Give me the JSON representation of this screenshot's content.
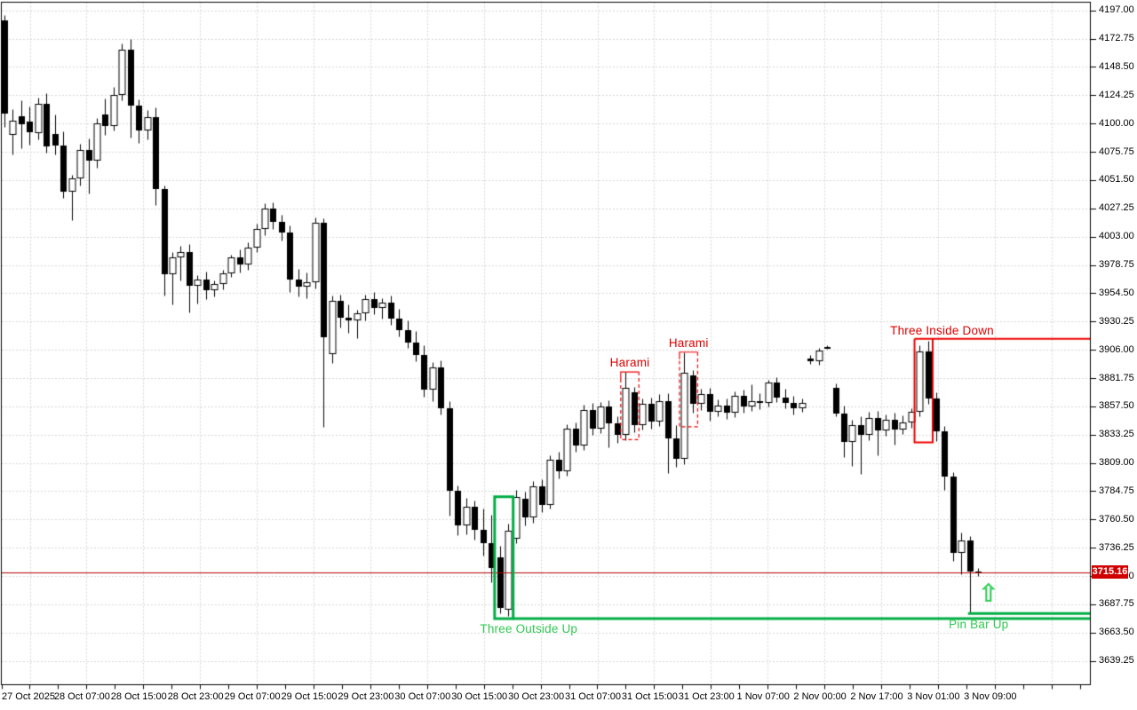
{
  "chart_data": {
    "type": "candlestick",
    "title": "",
    "grid": true,
    "ylim": [
      3639.25,
      4197.0
    ],
    "y_axis": {
      "price_step": 24.25,
      "tick_labels": [
        "4197.00",
        "4172.75",
        "4148.50",
        "4124.25",
        "4100.00",
        "4075.75",
        "4051.50",
        "4027.25",
        "4003.00",
        "3978.75",
        "3954.50",
        "3930.25",
        "3906.00",
        "3881.75",
        "3857.50",
        "3833.25",
        "3809.00",
        "3784.75",
        "3760.50",
        "3736.25",
        "3712.00",
        "3687.75",
        "3663.50",
        "3639.25"
      ],
      "price_tag": "3715.16"
    },
    "x_axis": {
      "tick_labels": [
        "27 Oct 2025",
        "28 Oct 07:00",
        "28 Oct 15:00",
        "28 Oct 23:00",
        "29 Oct 07:00",
        "29 Oct 15:00",
        "29 Oct 23:00",
        "30 Oct 07:00",
        "30 Oct 15:00",
        "30 Oct 23:00",
        "31 Oct 07:00",
        "31 Oct 15:00",
        "31 Oct 23:00",
        "1 Nov 07:00",
        "2 Nov 00:00",
        "2 Nov 17:00",
        "3 Nov 01:00",
        "3 Nov 09:00"
      ]
    },
    "horizontal_line": {
      "price": 3715.16
    },
    "candles_ohlc": [
      [
        4188.5,
        4192.75,
        4097.0,
        4108.5
      ],
      [
        4090.5,
        4112.5,
        4073.5,
        4102.75
      ],
      [
        4106.5,
        4120.0,
        4079.0,
        4099.25
      ],
      [
        4102.0,
        4114.5,
        4081.5,
        4092.75
      ],
      [
        4091.5,
        4122.0,
        4086.75,
        4117.25
      ],
      [
        4117.25,
        4126.0,
        4074.75,
        4080.0
      ],
      [
        4091.0,
        4107.75,
        4073.5,
        4081.25
      ],
      [
        4081.25,
        4093.0,
        4036.0,
        4041.5
      ],
      [
        4041.5,
        4056.0,
        4017.0,
        4052.75
      ],
      [
        4052.75,
        4083.0,
        4046.5,
        4077.5
      ],
      [
        4077.5,
        4087.0,
        4040.0,
        4068.0
      ],
      [
        4068.0,
        4105.0,
        4062.0,
        4100.25
      ],
      [
        4108.0,
        4121.5,
        4090.0,
        4098.0
      ],
      [
        4098.0,
        4131.0,
        4094.0,
        4124.5
      ],
      [
        4124.5,
        4168.25,
        4120.0,
        4163.0
      ],
      [
        4163.0,
        4172.75,
        4087.75,
        4115.25
      ],
      [
        4115.25,
        4120.5,
        4083.25,
        4094.0
      ],
      [
        4094.0,
        4111.25,
        4086.5,
        4105.5
      ],
      [
        4105.5,
        4113.75,
        4030.25,
        4043.5
      ],
      [
        4043.5,
        4047.25,
        3952.25,
        3970.75
      ],
      [
        3970.75,
        3989.5,
        3944.75,
        3985.0
      ],
      [
        3985.0,
        3995.25,
        3965.5,
        3989.75
      ],
      [
        3989.75,
        3996.5,
        3938.25,
        3961.25
      ],
      [
        3961.25,
        3969.75,
        3945.5,
        3966.5
      ],
      [
        3966.5,
        3973.0,
        3949.25,
        3956.75
      ],
      [
        3956.75,
        3965.75,
        3951.5,
        3962.25
      ],
      [
        3962.25,
        3974.25,
        3958.0,
        3971.5
      ],
      [
        3971.5,
        3987.25,
        3968.75,
        3985.5
      ],
      [
        3985.5,
        3992.0,
        3972.25,
        3979.0
      ],
      [
        3979.0,
        3998.5,
        3974.5,
        3993.25
      ],
      [
        3993.25,
        4014.0,
        3989.5,
        4009.5
      ],
      [
        4009.5,
        4031.5,
        4004.25,
        4026.75
      ],
      [
        4026.75,
        4032.25,
        4009.75,
        4015.5
      ],
      [
        4015.5,
        4022.0,
        3999.5,
        4006.25
      ],
      [
        4006.25,
        4012.75,
        3955.25,
        3966.0
      ],
      [
        3966.0,
        3975.0,
        3952.0,
        3960.5
      ],
      [
        3960.5,
        3972.0,
        3950.25,
        3963.75
      ],
      [
        3963.75,
        4019.5,
        3958.5,
        4015.25
      ],
      [
        4015.25,
        4018.5,
        3839.75,
        3916.5
      ],
      [
        3902.25,
        3952.5,
        3894.75,
        3947.75
      ],
      [
        3947.75,
        3953.25,
        3925.5,
        3933.5
      ],
      [
        3933.5,
        3944.75,
        3920.25,
        3931.25
      ],
      [
        3931.25,
        3940.5,
        3915.75,
        3937.25
      ],
      [
        3937.25,
        3953.5,
        3931.5,
        3949.75
      ],
      [
        3949.75,
        3955.25,
        3936.5,
        3941.75
      ],
      [
        3941.75,
        3950.25,
        3933.0,
        3946.5
      ],
      [
        3946.5,
        3952.75,
        3927.25,
        3932.5
      ],
      [
        3932.5,
        3941.25,
        3917.5,
        3922.75
      ],
      [
        3922.75,
        3931.5,
        3908.0,
        3912.25
      ],
      [
        3912.25,
        3921.75,
        3896.5,
        3901.5
      ],
      [
        3901.5,
        3910.25,
        3865.75,
        3872.0
      ],
      [
        3872.0,
        3895.5,
        3862.25,
        3890.75
      ],
      [
        3890.75,
        3897.25,
        3850.5,
        3856.25
      ],
      [
        3856.25,
        3862.0,
        3763.5,
        3784.75
      ],
      [
        3784.75,
        3790.0,
        3747.25,
        3755.5
      ],
      [
        3755.5,
        3779.25,
        3748.0,
        3771.5
      ],
      [
        3771.5,
        3776.5,
        3743.25,
        3752.0
      ],
      [
        3752.0,
        3769.75,
        3729.25,
        3740.5
      ],
      [
        3740.5,
        3764.5,
        3706.75,
        3718.75
      ],
      [
        3727.75,
        3737.75,
        3680.25,
        3684.5
      ],
      [
        3683.0,
        3757.25,
        3677.75,
        3751.25
      ],
      [
        3744.0,
        3785.75,
        3740.25,
        3779.75
      ],
      [
        3778.5,
        3784.25,
        3755.75,
        3762.5
      ],
      [
        3762.5,
        3793.5,
        3758.0,
        3789.25
      ],
      [
        3789.25,
        3794.75,
        3766.5,
        3773.25
      ],
      [
        3773.25,
        3815.5,
        3769.75,
        3811.5
      ],
      [
        3811.5,
        3818.25,
        3795.5,
        3801.75
      ],
      [
        3801.75,
        3842.5,
        3798.25,
        3838.25
      ],
      [
        3838.25,
        3843.75,
        3818.5,
        3824.25
      ],
      [
        3824.25,
        3858.75,
        3820.0,
        3854.5
      ],
      [
        3854.5,
        3860.25,
        3832.75,
        3838.5
      ],
      [
        3838.5,
        3861.5,
        3834.25,
        3857.75
      ],
      [
        3857.75,
        3862.5,
        3822.25,
        3843.25
      ],
      [
        3843.25,
        3849.0,
        3826.5,
        3832.75
      ],
      [
        3832.75,
        3887.25,
        3828.25,
        3873.75
      ],
      [
        3869.5,
        3874.25,
        3835.0,
        3841.75
      ],
      [
        3841.75,
        3864.5,
        3837.25,
        3859.75
      ],
      [
        3859.75,
        3865.25,
        3838.5,
        3844.25
      ],
      [
        3844.25,
        3867.75,
        3840.75,
        3862.25
      ],
      [
        3862.25,
        3868.5,
        3800.25,
        3829.75
      ],
      [
        3829.75,
        3841.5,
        3805.5,
        3812.25
      ],
      [
        3812.25,
        3903.75,
        3808.0,
        3886.25
      ],
      [
        3883.75,
        3888.5,
        3851.75,
        3859.5
      ],
      [
        3859.5,
        3872.25,
        3854.0,
        3867.75
      ],
      [
        3867.75,
        3873.5,
        3845.25,
        3852.5
      ],
      [
        3852.5,
        3863.75,
        3848.75,
        3858.25
      ],
      [
        3858.25,
        3864.5,
        3846.5,
        3851.75
      ],
      [
        3851.75,
        3870.25,
        3848.0,
        3866.5
      ],
      [
        3866.5,
        3871.75,
        3852.25,
        3857.5
      ],
      [
        3857.5,
        3876.25,
        3853.75,
        3862.25
      ],
      [
        3862.25,
        3868.5,
        3855.5,
        3860.75
      ],
      [
        3860.75,
        3880.5,
        3857.25,
        3877.75
      ],
      [
        3877.75,
        3882.25,
        3861.5,
        3864.75
      ],
      [
        3864.75,
        3872.5,
        3856.25,
        3860.5
      ],
      [
        3860.5,
        3866.75,
        3850.75,
        3856.25
      ],
      [
        3856.25,
        3864.5,
        3852.5,
        3860.75
      ],
      [
        3898.5,
        3901.75,
        3894.25,
        3896.0
      ],
      [
        3896.0,
        3907.25,
        3893.5,
        3905.5
      ],
      [
        3908.5,
        3910.0,
        3906.75,
        3908.5
      ],
      [
        3873.25,
        3877.5,
        3848.75,
        3851.5
      ],
      [
        3851.5,
        3858.25,
        3814.25,
        3826.75
      ],
      [
        3826.75,
        3846.25,
        3806.5,
        3841.5
      ],
      [
        3841.5,
        3848.75,
        3799.25,
        3833.25
      ],
      [
        3833.25,
        3852.5,
        3828.75,
        3847.25
      ],
      [
        3847.25,
        3853.75,
        3815.5,
        3836.5
      ],
      [
        3836.5,
        3850.25,
        3832.0,
        3845.75
      ],
      [
        3845.75,
        3852.25,
        3824.75,
        3837.25
      ],
      [
        3837.25,
        3849.5,
        3833.5,
        3843.75
      ],
      [
        3843.75,
        3856.25,
        3839.25,
        3852.5
      ],
      [
        3852.5,
        3910.25,
        3848.75,
        3904.5
      ],
      [
        3904.5,
        3913.5,
        3859.75,
        3864.25
      ],
      [
        3864.25,
        3869.75,
        3827.5,
        3836.25
      ],
      [
        3836.25,
        3840.5,
        3785.75,
        3797.25
      ],
      [
        3797.25,
        3800.75,
        3725.25,
        3731.5
      ],
      [
        3731.5,
        3749.25,
        3713.25,
        3742.75
      ],
      [
        3742.75,
        3746.5,
        3679.75,
        3716.25
      ],
      [
        3716.0,
        3718.75,
        3712.25,
        3715.16
      ]
    ],
    "annotations": {
      "harami_1": {
        "label": "Harami",
        "start_index": 74,
        "end_index": 75,
        "top": 3887.0,
        "bottom": 3829.0
      },
      "harami_2": {
        "label": "Harami",
        "start_index": 81,
        "end_index": 82,
        "top": 3904.0,
        "bottom": 3840.0
      },
      "three_inside_down": {
        "label": "Three Inside Down",
        "start_index": 109,
        "end_index": 110,
        "top": 3915.5,
        "bottom": 3826.5,
        "top_ray_extends_right": true
      },
      "three_outside_up": {
        "label": "Three Outside Up",
        "start_index": 59,
        "end_index": 60,
        "top": 3780.0,
        "bottom": 3675.5,
        "bottom_ray_extends_right": true
      },
      "pin_bar": {
        "label": "Pin Bar Up",
        "index": 115,
        "ray_price": 3680.0,
        "arrow": "⇧"
      }
    },
    "colors": {
      "background": "#ffffff",
      "grid": "#d6d6d6",
      "frame": "#000000",
      "bull_body": "#ffffff",
      "bear_body": "#000000",
      "candle_outline": "#000000",
      "red_line": "#b00000",
      "pattern_red": "#ee0000",
      "red_text": "#e00000",
      "pattern_green": "#00ad44",
      "green_text": "#2fca50",
      "arrow_green": "#44d466",
      "tag_bg": "#d00000",
      "tag_text": "#ffffff",
      "axis_text": "#000000"
    }
  }
}
